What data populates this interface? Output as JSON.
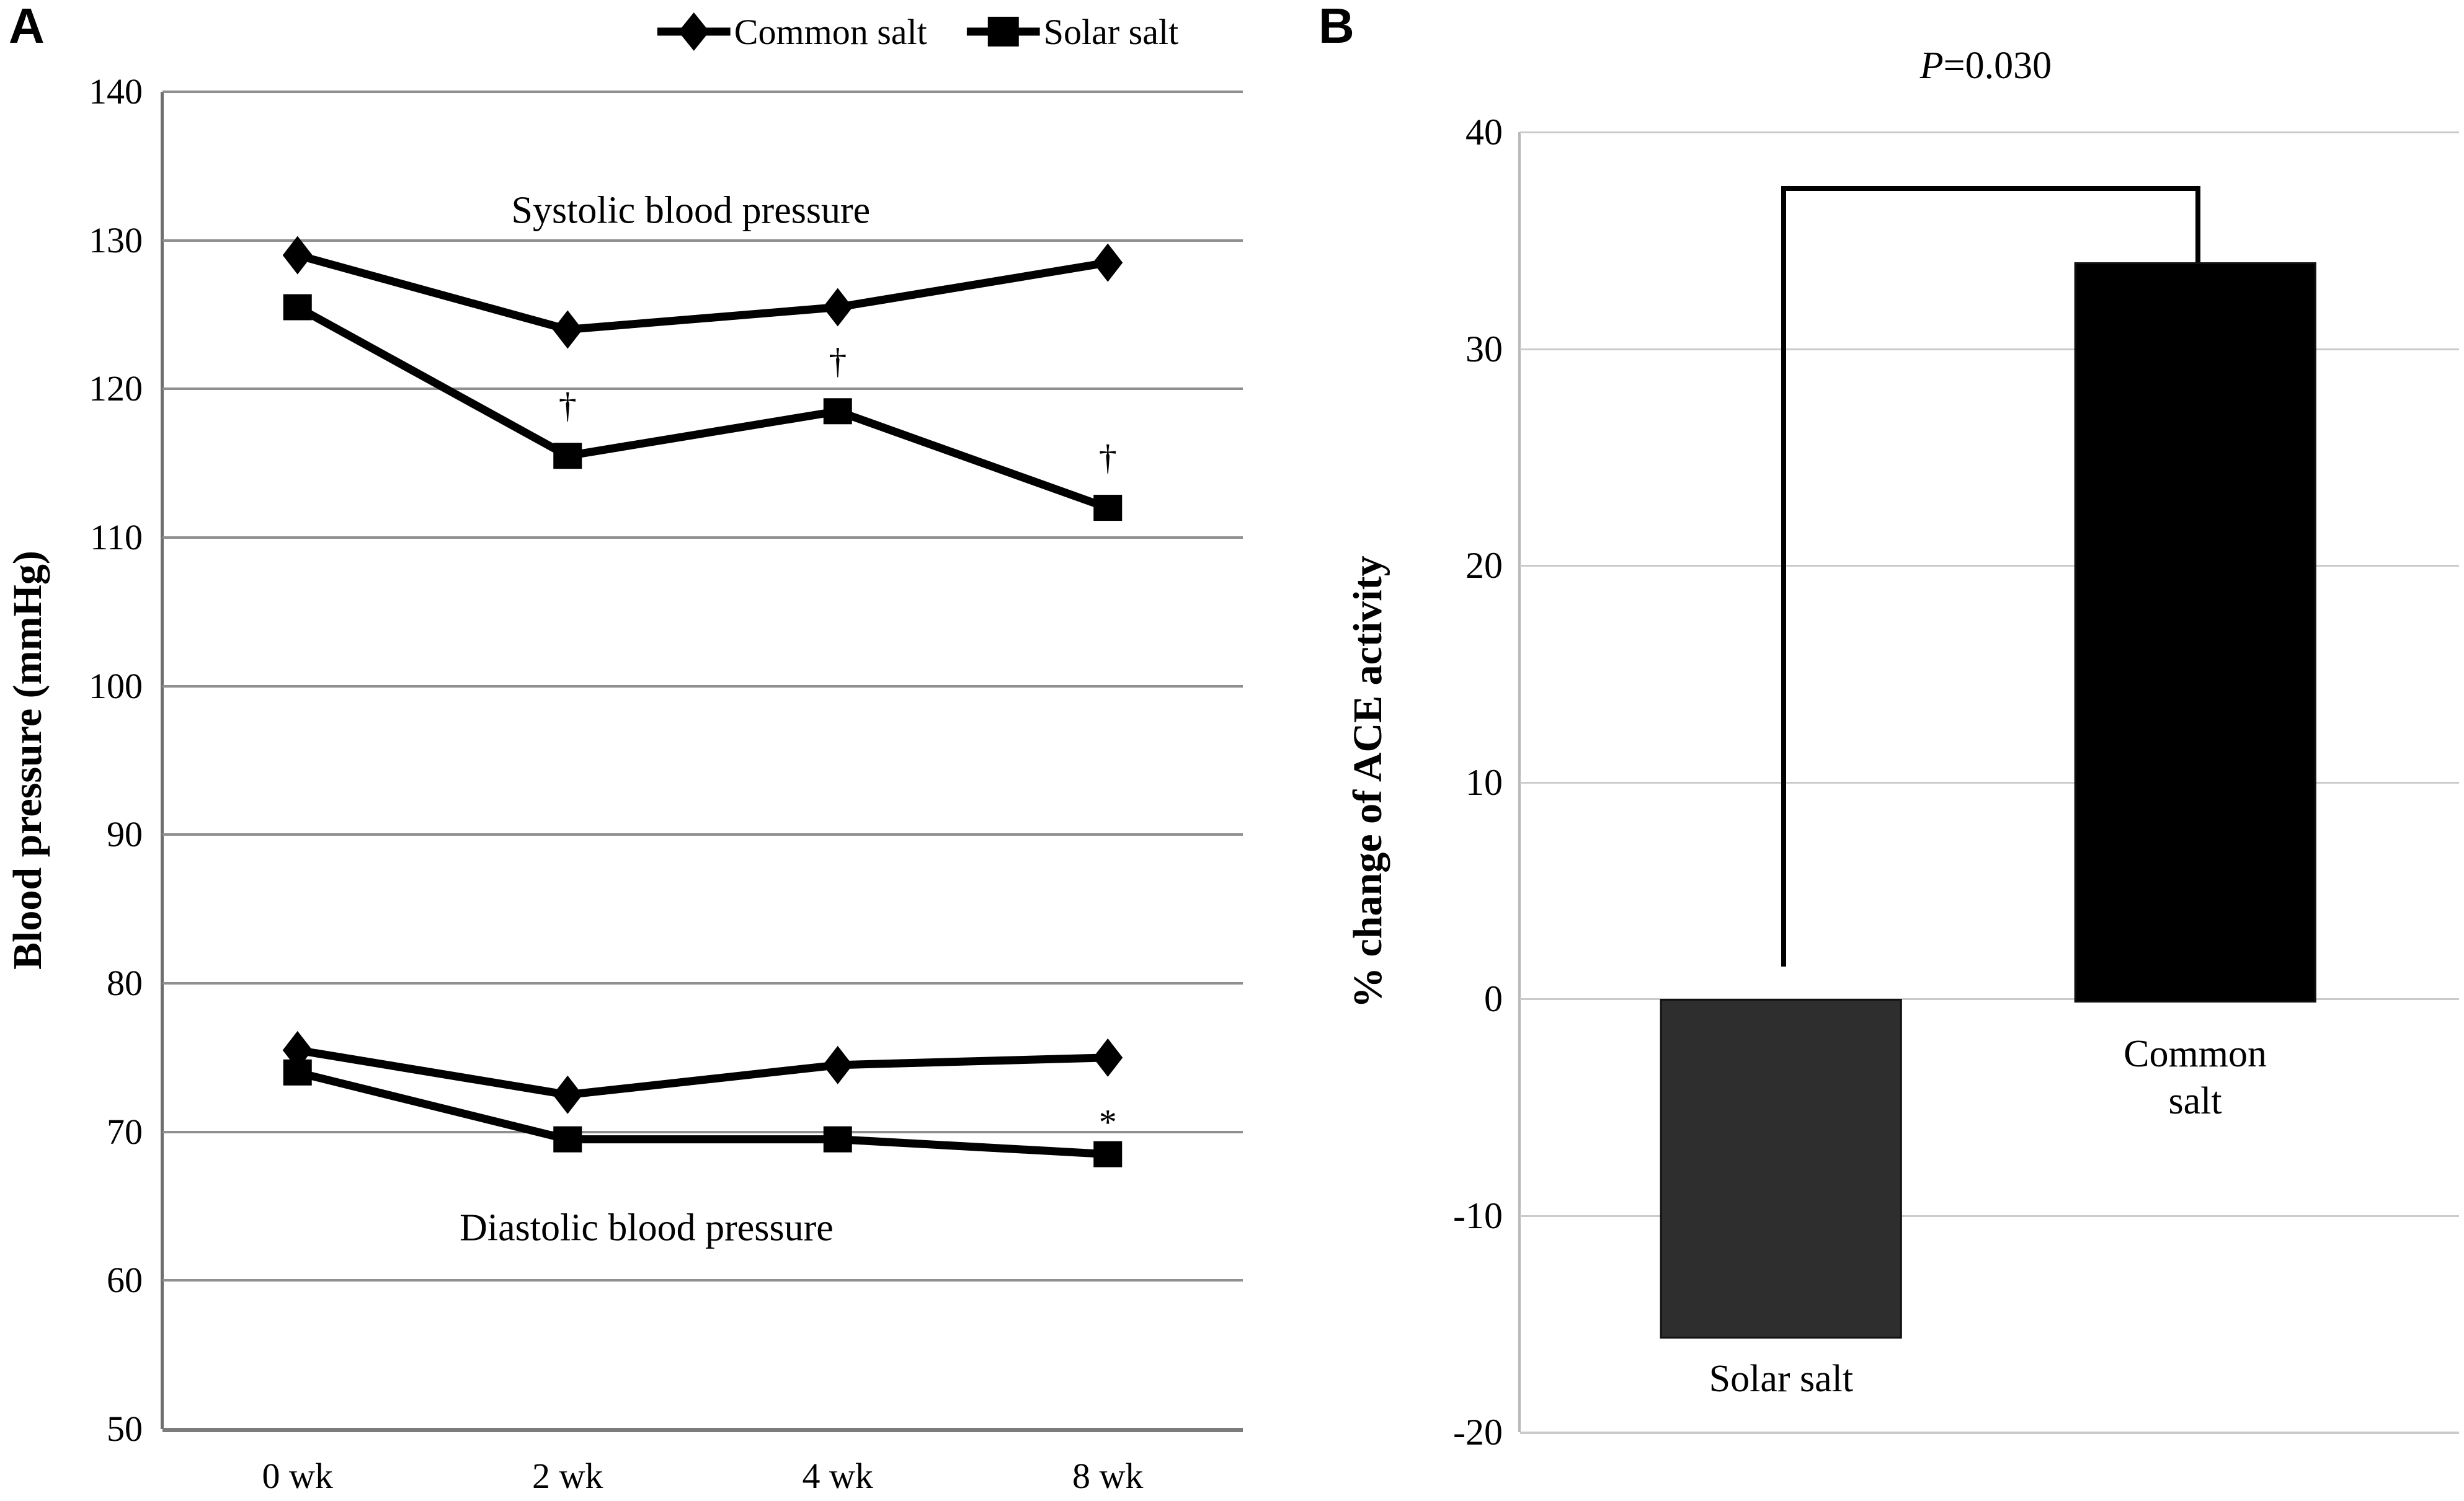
{
  "figure": {
    "panel_a_label": "A",
    "panel_b_label": "B"
  },
  "legend": {
    "items": [
      {
        "label": "Common salt",
        "marker": "diamond"
      },
      {
        "label": "Solar salt",
        "marker": "square"
      }
    ]
  },
  "colors": {
    "series_line": "#000000",
    "solar_bar_fill": "#2e2e2e",
    "common_bar_fill": "#000000",
    "bar_edge": "#111111",
    "grid_a": "#8f8f8f",
    "grid_b": "#cbcbcb",
    "axis_a": "#6e6e6e",
    "axis_b": "#b9b9b9"
  },
  "chart_data": [
    {
      "type": "line",
      "panel": "A",
      "ylabel": "Blood pressure (mmHg)",
      "ylim": [
        50,
        140
      ],
      "yticks": [
        140,
        130,
        120,
        110,
        100,
        90,
        80,
        70,
        60,
        50
      ],
      "categories": [
        "0 wk",
        "2 wk",
        "4 wk",
        "8 wk"
      ],
      "grid": true,
      "legend_position": "top",
      "group_titles": [
        "Systolic blood pressure",
        "Diastolic blood pressure"
      ],
      "series": [
        {
          "name": "Common salt systolic",
          "legend": "Common salt",
          "marker": "diamond",
          "values": [
            129,
            124,
            125.5,
            128.5
          ],
          "annotations": [
            "",
            "",
            "",
            ""
          ]
        },
        {
          "name": "Solar salt systolic",
          "legend": "Solar salt",
          "marker": "square",
          "values": [
            125.5,
            115.5,
            118.5,
            112
          ],
          "annotations": [
            "",
            "†",
            "†",
            "†"
          ]
        },
        {
          "name": "Common salt diastolic",
          "legend": "Common salt",
          "marker": "diamond",
          "values": [
            75.5,
            72.5,
            74.5,
            75
          ],
          "annotations": [
            "",
            "",
            "",
            ""
          ]
        },
        {
          "name": "Solar salt diastolic",
          "legend": "Solar salt",
          "marker": "square",
          "values": [
            74,
            69.5,
            69.5,
            68.5
          ],
          "annotations": [
            "",
            "",
            "",
            "*"
          ]
        }
      ]
    },
    {
      "type": "bar",
      "panel": "B",
      "ylabel": "% change of ACE activity",
      "ylim": [
        -20,
        40
      ],
      "yticks": [
        40,
        30,
        20,
        10,
        0,
        -10,
        -20
      ],
      "categories": [
        "Solar salt",
        "Common salt"
      ],
      "values": [
        -15.5,
        34
      ],
      "grid": true,
      "bar_labels": [
        [
          "Solar salt"
        ],
        [
          "Common",
          "salt"
        ]
      ],
      "significance": {
        "p_italic": "P",
        "p_rest": "=0.030",
        "bracket_y": 37.5,
        "left_leg_bottom": 1.5,
        "right_leg_bottom": 34
      }
    }
  ]
}
